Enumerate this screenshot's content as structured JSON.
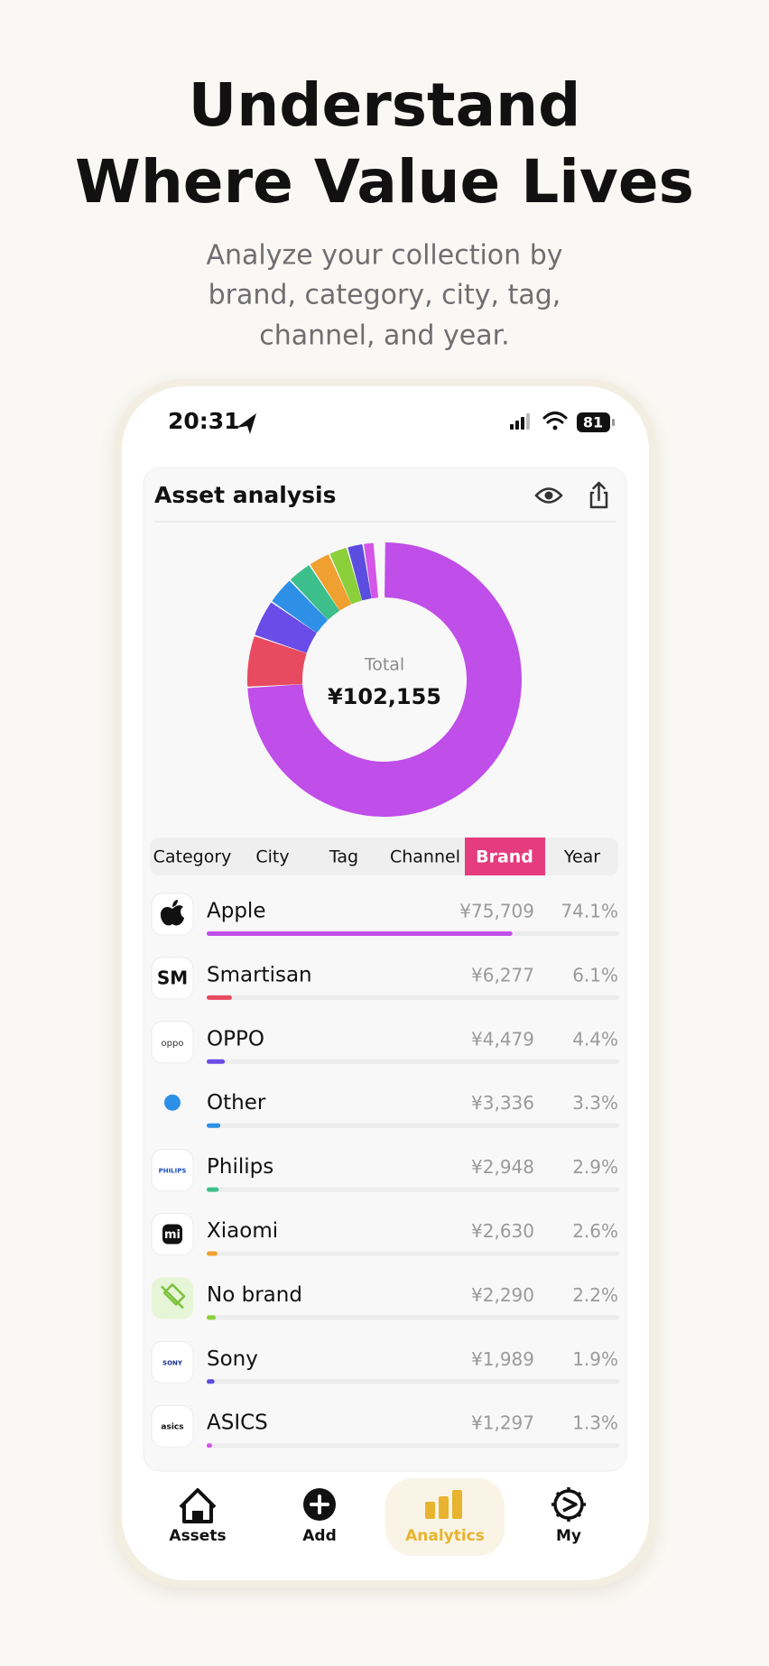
{
  "header": {
    "title_lines": [
      "Understand",
      "Where Value Lives"
    ],
    "subtitle_lines": [
      "Analyze your collection by",
      "brand, category, city, tag,",
      "channel, and year."
    ]
  },
  "status_bar": {
    "time": "20:31",
    "battery": "81"
  },
  "card": {
    "title": "Asset analysis"
  },
  "tabs": [
    {
      "label": "Category"
    },
    {
      "label": "City"
    },
    {
      "label": "Tag"
    },
    {
      "label": "Channel"
    },
    {
      "label": "Brand",
      "selected": true
    },
    {
      "label": "Year"
    }
  ],
  "logos": {
    "Smartisan": "SM",
    "OPPO": "oppo",
    "Philips": "PHILIPS",
    "Xiaomi": "mi",
    "Sony": "SONY",
    "ASICS": "asics"
  },
  "chart_data": {
    "type": "donut",
    "center_label": "Total",
    "center_value": "¥102,155",
    "categories": [
      "Apple",
      "Smartisan",
      "OPPO",
      "Other",
      "Philips",
      "Xiaomi",
      "No brand",
      "Sony",
      "ASICS"
    ],
    "amounts": [
      "¥75,709",
      "¥6,277",
      "¥4,479",
      "¥3,336",
      "¥2,948",
      "¥2,630",
      "¥2,290",
      "¥1,989",
      "¥1,297"
    ],
    "values": [
      74.1,
      6.1,
      4.4,
      3.3,
      2.9,
      2.6,
      2.2,
      1.9,
      1.3
    ],
    "value_labels": [
      "74.1%",
      "6.1%",
      "4.4%",
      "3.3%",
      "2.9%",
      "2.6%",
      "2.2%",
      "1.9%",
      "1.3%"
    ],
    "colors": [
      "#c04ee8",
      "#e84a5f",
      "#6a4de8",
      "#2e8fe6",
      "#3cbf8a",
      "#f0a030",
      "#8bcf3a",
      "#5b4de0",
      "#d455e8"
    ]
  },
  "nav": [
    {
      "label": "Assets"
    },
    {
      "label": "Add"
    },
    {
      "label": "Analytics",
      "selected": true
    },
    {
      "label": "My"
    }
  ]
}
